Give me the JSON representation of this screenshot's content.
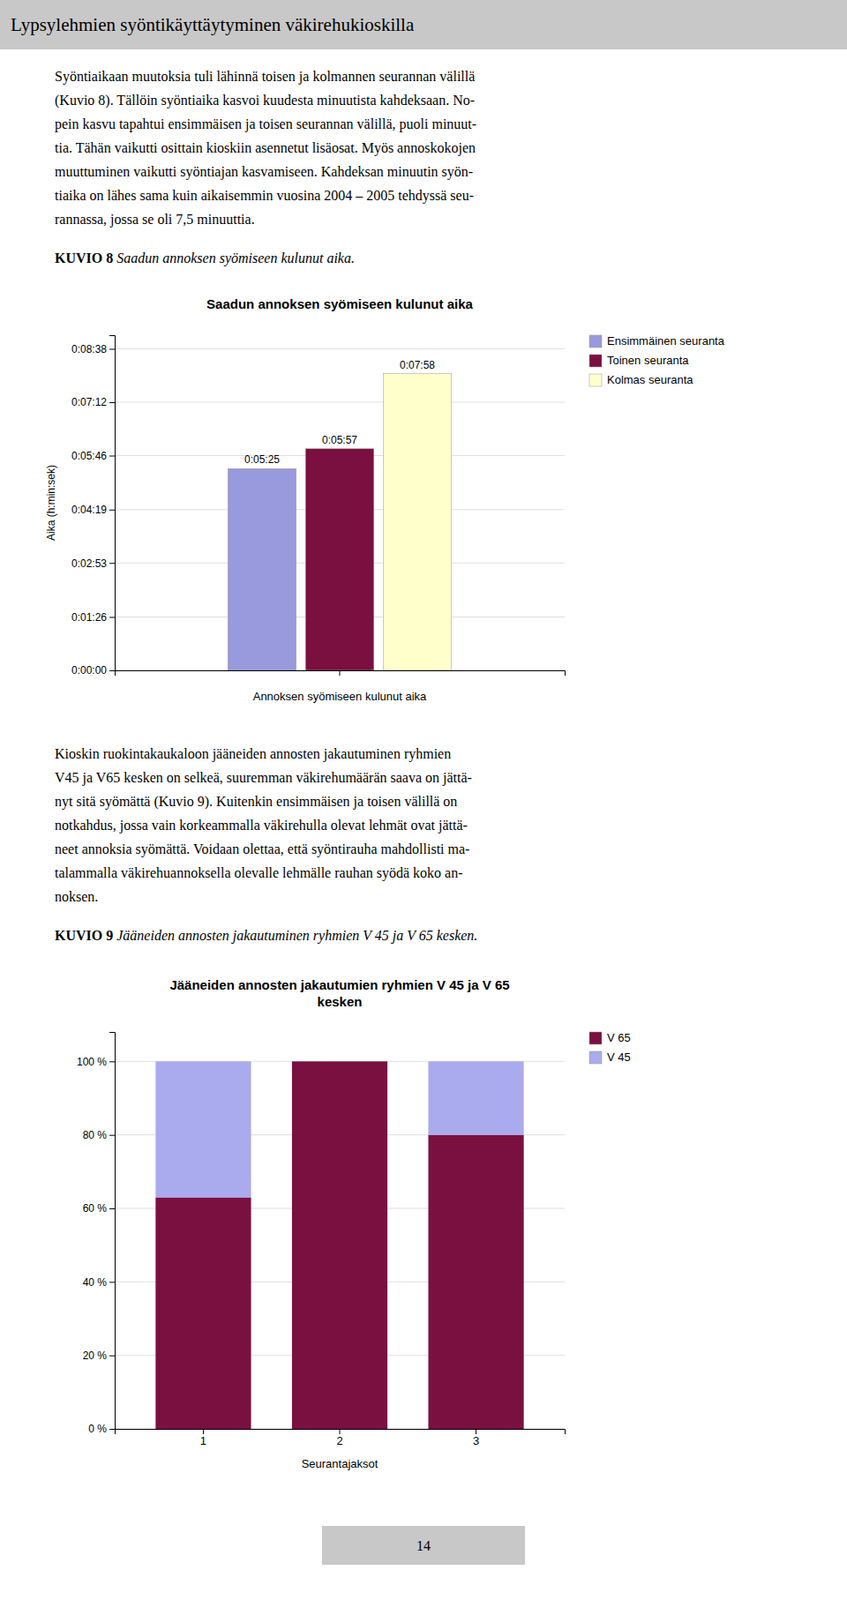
{
  "page_title": "Lypsylehmien syöntikäyttäytyminen väkirehukioskilla",
  "text_blocks": [
    {
      "lines": [
        "Syöntiaikaan muutoksia tuli lähinnä toisen ja kolmannen seurannan välillä",
        "(Kuvio 8). Tällöin syöntiaika kasvoi kuudesta minuutista kahdeksaan. No-",
        "pein kasvu tapahtui ensimmäisen ja toisen seurannan välillä, puoli minuut-",
        "tia. Tähän vaikutti osittain kioskiin asennetut lisäosat. Myös annoskokojen",
        "muuttuminen vaikutti syöntiajan kasvamiseen. Kahdeksan minuutin syön-",
        "tiaika on lähes sama kuin aikaisemmin vuosina 2004 – 2005 tehdyssä seu-",
        "rannassa, jossa se oli 7,5 minuuttia."
      ],
      "caption_bold": "KUVIO 8 ",
      "caption_italic": "Saadun annoksen syömiseen kulunut aika."
    },
    {
      "lines": [
        "Kioskin ruokintakaukaloon jääneiden annosten jakautuminen ryhmien",
        "V45 ja V65 kesken on selkeä, suuremman väkirehumäärän saava on jättä-",
        "nyt sitä syömättä (Kuvio 9). Kuitenkin ensimmäisen ja toisen välillä on",
        "notkahdus, jossa vain korkeammalla väkirehulla olevat lehmät ovat jättä-",
        "neet annoksia syömättä. Voidaan olettaa, että syöntirauha mahdollisti ma-",
        "talammalla väkirehuannoksella olevalle lehmälle rauhan syödä koko an-",
        "noksen."
      ],
      "caption_bold": "KUVIO 9 ",
      "caption_italic": "Jääneiden annosten jakautuminen ryhmien V 45 ja V 65 kesken."
    }
  ],
  "page_number": "14",
  "chart_data": [
    {
      "type": "bar",
      "title": "Saadun annoksen syömiseen kulunut aika",
      "x_label": "Annoksen syömiseen kulunut aika",
      "y_label": "Aika (h:min:sek)",
      "categories": [
        null
      ],
      "series": [
        {
          "name": "Ensimmäinen seuranta",
          "color": "#9999dd",
          "values": [
            325
          ],
          "value_labels": [
            "0:05:25"
          ]
        },
        {
          "name": "Toinen seuranta",
          "color": "#7a1040",
          "values": [
            357
          ],
          "value_labels": [
            "0:05:57"
          ]
        },
        {
          "name": "Kolmas seuranta",
          "color": "#ffffcc",
          "values": [
            478
          ],
          "value_labels": [
            "0:07:58"
          ]
        }
      ],
      "ylim": [
        0,
        540
      ],
      "yticks": [
        {
          "value": 0,
          "label": "0:00:00"
        },
        {
          "value": 86,
          "label": "0:01:26"
        },
        {
          "value": 173,
          "label": "0:02:53"
        },
        {
          "value": 259,
          "label": "0:04:19"
        },
        {
          "value": 346,
          "label": "0:05:46"
        },
        {
          "value": 432,
          "label": "0:07:12"
        },
        {
          "value": 518,
          "label": "0:08:38"
        }
      ],
      "grid": true,
      "legend": "right",
      "data_labels": true
    },
    {
      "type": "bar",
      "title": "Jääneiden annosten jakautumien ryhmien V 45 ja V 65\nkesken",
      "x_label": "Seurantajaksot",
      "categories": [
        "1",
        "2",
        "3"
      ],
      "series": [
        {
          "name": "V 65",
          "color": "#7a1040",
          "values": [
            63,
            100,
            80
          ]
        },
        {
          "name": "V 45",
          "color": "#aaaaee",
          "values": [
            37,
            0,
            20
          ]
        }
      ],
      "stacked": true,
      "ylim": [
        0,
        108
      ],
      "yticks": [
        {
          "value": 0,
          "label": "0 %"
        },
        {
          "value": 20,
          "label": "20 %"
        },
        {
          "value": 40,
          "label": "40 %"
        },
        {
          "value": 60,
          "label": "60 %"
        },
        {
          "value": 80,
          "label": "80 %"
        },
        {
          "value": 100,
          "label": "100 %"
        }
      ],
      "grid": true,
      "legend": "right"
    }
  ]
}
